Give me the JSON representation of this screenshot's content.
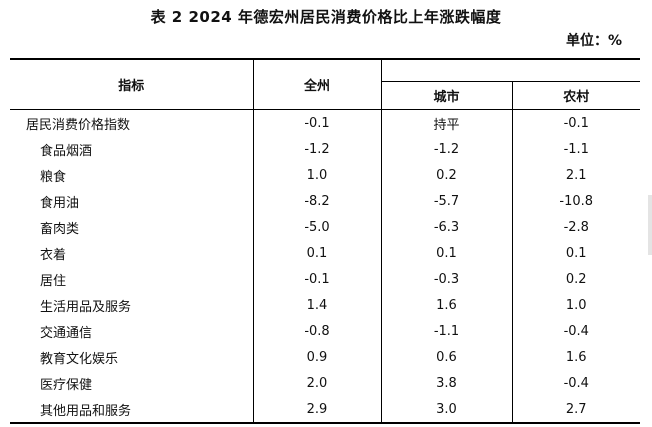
{
  "title": "表 2   2024 年德宏州居民消费价格比上年涨跌幅度",
  "unit": "单位：%",
  "headers": {
    "indicator": "指标",
    "total": "全州",
    "urban": "城市",
    "rural": "农村"
  },
  "rows": [
    {
      "name": "居民消费价格指数",
      "total": "-0.1",
      "urban": "持平",
      "rural": "-0.1"
    },
    {
      "name": "食品烟酒",
      "total": "-1.2",
      "urban": "-1.2",
      "rural": "-1.1"
    },
    {
      "name": "粮食",
      "total": "1.0",
      "urban": "0.2",
      "rural": "2.1"
    },
    {
      "name": "食用油",
      "total": "-8.2",
      "urban": "-5.7",
      "rural": "-10.8"
    },
    {
      "name": "畜肉类",
      "total": "-5.0",
      "urban": "-6.3",
      "rural": "-2.8"
    },
    {
      "name": "衣着",
      "total": "0.1",
      "urban": "0.1",
      "rural": "0.1"
    },
    {
      "name": "居住",
      "total": "-0.1",
      "urban": "-0.3",
      "rural": "0.2"
    },
    {
      "name": "生活用品及服务",
      "total": "1.4",
      "urban": "1.6",
      "rural": "1.0"
    },
    {
      "name": "交通通信",
      "total": "-0.8",
      "urban": "-1.1",
      "rural": "-0.4"
    },
    {
      "name": "教育文化娱乐",
      "total": "0.9",
      "urban": "0.6",
      "rural": "1.6"
    },
    {
      "name": "医疗保健",
      "total": "2.0",
      "urban": "3.8",
      "rural": "-0.4"
    },
    {
      "name": "其他用品和服务",
      "total": "2.9",
      "urban": "3.0",
      "rural": "2.7"
    }
  ]
}
